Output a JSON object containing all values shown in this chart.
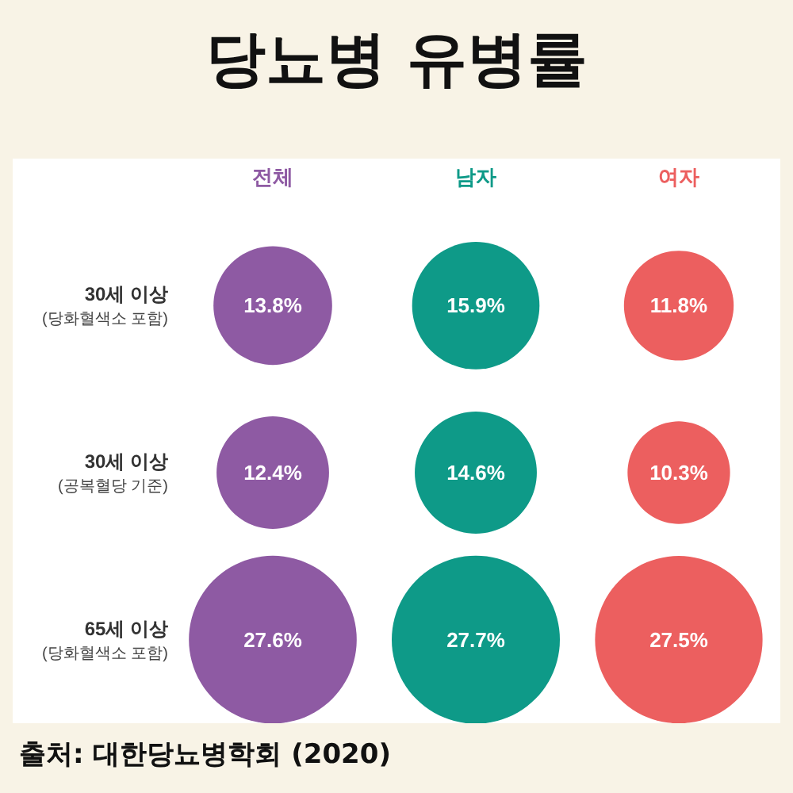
{
  "chart_data": {
    "type": "other",
    "title": "당뇨병 유병률",
    "categories": [
      "전체",
      "남자",
      "여자"
    ],
    "series": [
      {
        "name": "30세 이상\n(당화혈색소 포함)",
        "colors": [
          "#8e5aa3",
          "#0e9a88",
          "#ec5f5f"
        ],
        "values": [
          13.8,
          15.9,
          11.8
        ],
        "value_labels": [
          "13.8%",
          "15.9%",
          "11.8%"
        ]
      },
      {
        "name": "30세 이상\n(공복혈당 기준)",
        "colors": [
          "#8e5aa3",
          "#0e9a88",
          "#ec5f5f"
        ],
        "values": [
          12.4,
          14.6,
          10.3
        ],
        "value_labels": [
          "12.4%",
          "14.6%",
          "10.3%"
        ]
      },
      {
        "name": "65세 이상\n(당화혈색소 포함)",
        "colors": [
          "#8e5aa3",
          "#0e9a88",
          "#ec5f5f"
        ],
        "values": [
          27.6,
          27.7,
          27.5
        ],
        "value_labels": [
          "27.6%",
          "27.7%",
          "27.5%"
        ]
      }
    ],
    "legend": false,
    "annotations": [
      "출처: 대한당뇨병학회 (2020)"
    ]
  }
}
